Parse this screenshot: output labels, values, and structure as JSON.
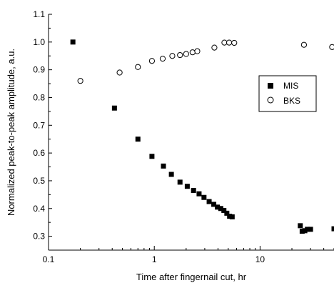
{
  "chart_data": {
    "type": "scatter",
    "xlabel": "Time after fingernail cut, hr",
    "ylabel": "Normalized peak-to-peak amplitude, a.u.",
    "x_scale": "log",
    "xlim": [
      0.1,
      50
    ],
    "ylim": [
      0.25,
      1.1
    ],
    "x_ticks": [
      0.1,
      1,
      10
    ],
    "x_tick_labels": [
      "0.1",
      "1",
      "10"
    ],
    "y_ticks": [
      0.3,
      0.4,
      0.5,
      0.6,
      0.7,
      0.8,
      0.9,
      1.0,
      1.1
    ],
    "y_tick_labels": [
      "0.3",
      "0.4",
      "0.5",
      "0.6",
      "0.7",
      "0.8",
      "0.9",
      "1.0",
      "1.1"
    ],
    "grid": false,
    "legend_position": "right",
    "series": [
      {
        "name": "MIS",
        "marker": "filled-square",
        "color": "#000000",
        "points": [
          [
            0.17,
            1.0
          ],
          [
            0.42,
            0.762
          ],
          [
            0.7,
            0.65
          ],
          [
            0.95,
            0.588
          ],
          [
            1.22,
            0.553
          ],
          [
            1.45,
            0.523
          ],
          [
            1.75,
            0.495
          ],
          [
            2.05,
            0.48
          ],
          [
            2.35,
            0.465
          ],
          [
            2.65,
            0.453
          ],
          [
            2.95,
            0.44
          ],
          [
            3.3,
            0.425
          ],
          [
            3.65,
            0.415
          ],
          [
            3.95,
            0.405
          ],
          [
            4.25,
            0.4
          ],
          [
            4.55,
            0.393
          ],
          [
            4.85,
            0.383
          ],
          [
            5.15,
            0.372
          ],
          [
            5.45,
            0.37
          ],
          [
            24.0,
            0.338
          ],
          [
            25.0,
            0.318
          ],
          [
            26.5,
            0.32
          ],
          [
            28.0,
            0.325
          ],
          [
            30.0,
            0.325
          ],
          [
            50.0,
            0.327
          ]
        ]
      },
      {
        "name": "BKS",
        "marker": "open-circle",
        "color": "#000000",
        "points": [
          [
            0.2,
            0.86
          ],
          [
            0.47,
            0.89
          ],
          [
            0.7,
            0.91
          ],
          [
            0.95,
            0.932
          ],
          [
            1.2,
            0.94
          ],
          [
            1.48,
            0.95
          ],
          [
            1.75,
            0.953
          ],
          [
            2.0,
            0.957
          ],
          [
            2.3,
            0.963
          ],
          [
            2.55,
            0.967
          ],
          [
            3.7,
            0.98
          ],
          [
            4.6,
            0.998
          ],
          [
            5.1,
            0.998
          ],
          [
            5.7,
            0.997
          ],
          [
            26.0,
            0.99
          ],
          [
            48.0,
            0.982
          ]
        ]
      }
    ]
  }
}
